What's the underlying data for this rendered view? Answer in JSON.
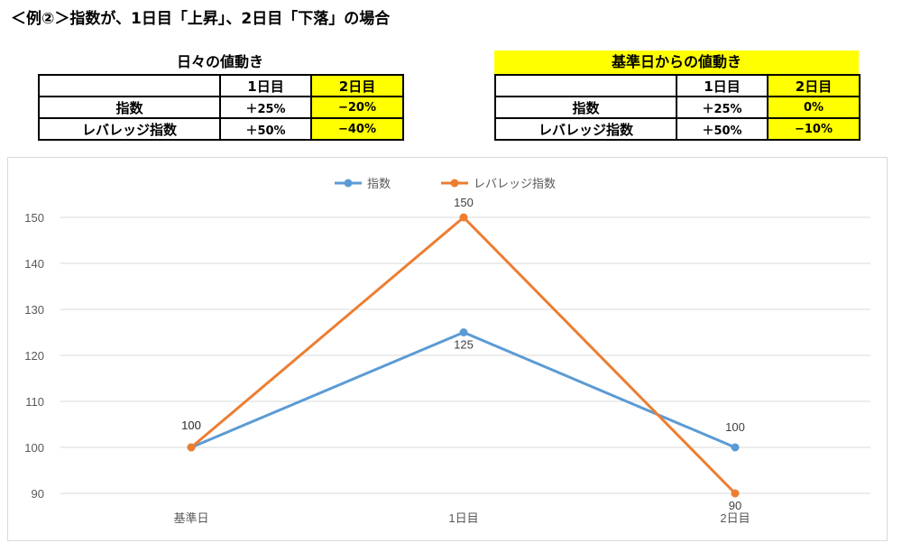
{
  "heading": "＜例②＞指数が、1日目「上昇」、2日目「下落」の場合",
  "tables": [
    {
      "caption": "日々の値動き",
      "columns": [
        "",
        "1日目",
        "2日目"
      ],
      "rows": [
        {
          "label": "指数",
          "values": [
            "＋25%",
            "−20%"
          ]
        },
        {
          "label": "レバレッジ指数",
          "values": [
            "＋50%",
            "−40%"
          ]
        }
      ]
    },
    {
      "caption": "基準日からの値動き",
      "columns": [
        "",
        "1日目",
        "2日目"
      ],
      "rows": [
        {
          "label": "指数",
          "values": [
            "＋25%",
            "0%"
          ]
        },
        {
          "label": "レバレッジ指数",
          "values": [
            "＋50%",
            "−10%"
          ]
        }
      ]
    }
  ],
  "colors": {
    "highlight": "#ffff00",
    "series_index": "#5b9bd5",
    "series_leverage": "#ed7d31",
    "grid": "#d9d9d9",
    "tick": "#595959"
  },
  "chart_data": {
    "type": "line",
    "categories": [
      "基準日",
      "1日目",
      "2日目"
    ],
    "series": [
      {
        "name": "指数",
        "values": [
          100,
          125,
          100
        ],
        "labels": [
          "100",
          "125",
          "100"
        ]
      },
      {
        "name": "レバレッジ指数",
        "values": [
          100,
          150,
          90
        ],
        "labels": [
          "100",
          "150",
          "90"
        ]
      }
    ],
    "yticks": [
      90,
      100,
      110,
      120,
      130,
      140,
      150
    ],
    "ylim": [
      90,
      150
    ],
    "grid": true,
    "legend_position": "top"
  }
}
